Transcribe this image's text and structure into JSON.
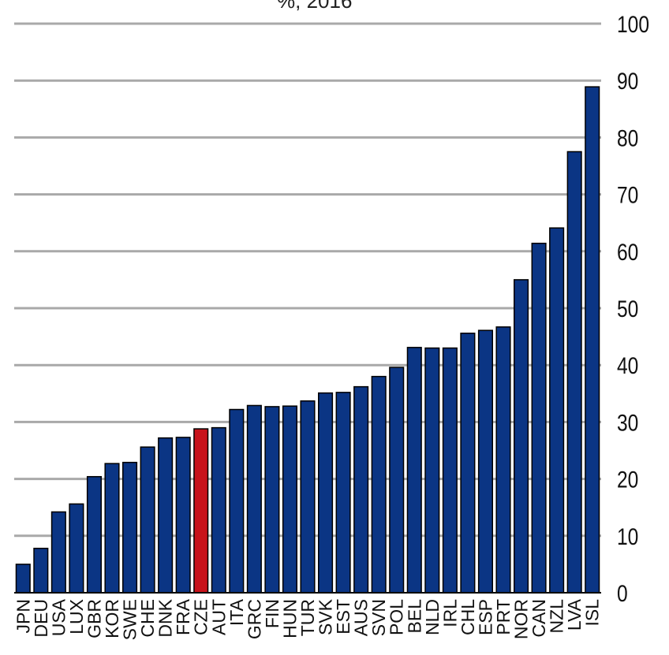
{
  "partial_title": "%, 2016",
  "colors": {
    "bar": "#0b3584",
    "highlight": "#c8131b",
    "grid": "#a9a9a9",
    "text": "#111111"
  },
  "chart_data": {
    "type": "bar",
    "title": "",
    "xlabel": "",
    "ylabel": "",
    "ylim": [
      0,
      100
    ],
    "yticks": [
      0,
      10,
      20,
      30,
      40,
      50,
      60,
      70,
      80,
      90,
      100
    ],
    "y_axis_side": "right",
    "grid": true,
    "highlight_category": "CZE",
    "categories": [
      "JPN",
      "DEU",
      "USA",
      "LUX",
      "GBR",
      "KOR",
      "SWE",
      "CHE",
      "DNK",
      "FRA",
      "CZE",
      "AUT",
      "ITA",
      "GRC",
      "FIN",
      "HUN",
      "TUR",
      "SVK",
      "EST",
      "AUS",
      "SVN",
      "POL",
      "BEL",
      "NLD",
      "IRL",
      "CHL",
      "ESP",
      "PRT",
      "NOR",
      "CAN",
      "NZL",
      "LVA",
      "ISL"
    ],
    "values": [
      5,
      7.8,
      14.2,
      15.6,
      20.4,
      22.7,
      22.9,
      25.6,
      27.2,
      27.3,
      28.8,
      29.0,
      32.2,
      32.9,
      32.7,
      32.8,
      33.7,
      35.1,
      35.2,
      36.2,
      38.0,
      39.6,
      43.1,
      43.0,
      43.0,
      45.6,
      46.1,
      46.7,
      55.0,
      61.4,
      64.1,
      77.5,
      88.9
    ]
  }
}
